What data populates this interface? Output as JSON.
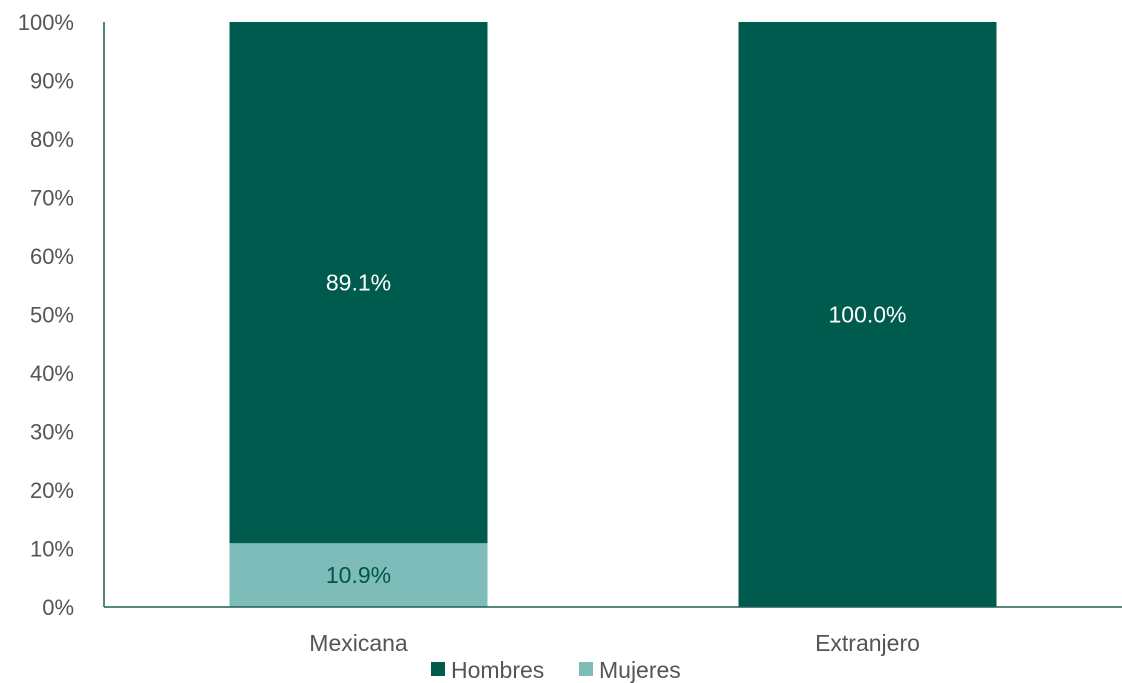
{
  "chart_data": {
    "type": "bar",
    "stacked": true,
    "categories": [
      "Mexicana",
      "Extranjero"
    ],
    "series": [
      {
        "name": "Hombres",
        "values": [
          89.1,
          100.0
        ],
        "labels": [
          "89.1%",
          "100.0%"
        ],
        "color": "#005b4f",
        "label_color": "#ffffff"
      },
      {
        "name": "Mujeres",
        "values": [
          10.9,
          0
        ],
        "labels": [
          "10.9%",
          ""
        ],
        "color": "#7dbcb8",
        "label_color": "#00564a"
      }
    ],
    "stack_order": [
      "Mujeres",
      "Hombres"
    ],
    "ylim": [
      0,
      100
    ],
    "yticks": [
      0,
      10,
      20,
      30,
      40,
      50,
      60,
      70,
      80,
      90,
      100
    ],
    "ytick_labels": [
      "0%",
      "10%",
      "20%",
      "30%",
      "40%",
      "50%",
      "60%",
      "70%",
      "80%",
      "90%",
      "100%"
    ],
    "legend_position": "bottom",
    "grid": false,
    "axis_color": "#1f5e52"
  }
}
